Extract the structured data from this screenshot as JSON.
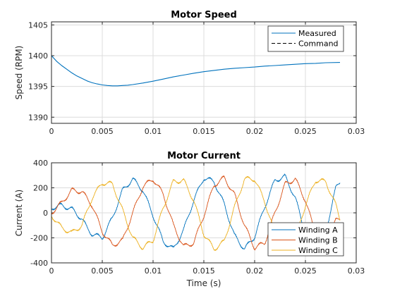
{
  "chart_data": [
    {
      "type": "line",
      "title": "Motor Speed",
      "xlabel": "",
      "ylabel": "Speed (RPM)",
      "xlim": [
        0,
        0.03
      ],
      "ylim": [
        1389,
        1405.5
      ],
      "xticks": [
        "0",
        "0.005",
        "0.01",
        "0.015",
        "0.02",
        "0.025",
        "0.03"
      ],
      "yticks": [
        "1390",
        "1395",
        "1400",
        "1405"
      ],
      "grid": true,
      "legend_position": "top-right",
      "series": [
        {
          "name": "Measured",
          "color": "#0072BD",
          "x": [
            0,
            0.0005,
            0.001,
            0.0015,
            0.002,
            0.0025,
            0.003,
            0.0035,
            0.004,
            0.0045,
            0.005,
            0.0055,
            0.006,
            0.0065,
            0.007,
            0.0075,
            0.008,
            0.009,
            0.01,
            0.011,
            0.012,
            0.013,
            0.014,
            0.015,
            0.016,
            0.017,
            0.018,
            0.019,
            0.02,
            0.021,
            0.022,
            0.023,
            0.024,
            0.025,
            0.026,
            0.027,
            0.0284
          ],
          "y": [
            1400,
            1399.1,
            1398.4,
            1397.8,
            1397.2,
            1396.7,
            1396.3,
            1395.9,
            1395.6,
            1395.4,
            1395.25,
            1395.15,
            1395.1,
            1395.1,
            1395.15,
            1395.2,
            1395.3,
            1395.55,
            1395.85,
            1396.2,
            1396.55,
            1396.85,
            1397.15,
            1397.4,
            1397.6,
            1397.8,
            1397.95,
            1398.05,
            1398.15,
            1398.3,
            1398.4,
            1398.5,
            1398.6,
            1398.7,
            1398.75,
            1398.85,
            1398.9
          ]
        },
        {
          "name": "Command",
          "color": "#000000",
          "dashed": true,
          "x": [],
          "y": []
        }
      ]
    },
    {
      "type": "line",
      "title": "Motor Current",
      "xlabel": "Time (s)",
      "ylabel": "Current (A)",
      "xlim": [
        0,
        0.03
      ],
      "ylim": [
        -400,
        400
      ],
      "xticks": [
        "0",
        "0.005",
        "0.01",
        "0.015",
        "0.02",
        "0.025",
        "0.03"
      ],
      "yticks": [
        "-400",
        "-200",
        "0",
        "200",
        "400"
      ],
      "grid": true,
      "legend_position": "bottom-right",
      "series": [
        {
          "name": "Winding A",
          "color": "#0072BD",
          "x": [
            0,
            0.001,
            0.002,
            0.003,
            0.0035,
            0.004,
            0.005,
            0.006,
            0.007,
            0.008,
            0.009,
            0.01,
            0.011,
            0.012,
            0.013,
            0.014,
            0.015,
            0.016,
            0.017,
            0.018,
            0.019,
            0.02,
            0.021,
            0.022,
            0.023,
            0.024,
            0.025,
            0.026,
            0.027,
            0.028,
            0.0284
          ],
          "y": [
            40,
            60,
            30,
            -50,
            -120,
            -170,
            -200,
            -40,
            180,
            270,
            180,
            -20,
            -230,
            -290,
            -140,
            100,
            280,
            250,
            70,
            -180,
            -290,
            -190,
            50,
            260,
            290,
            120,
            -170,
            -280,
            -150,
            200,
            250
          ]
        },
        {
          "name": "Winding B",
          "color": "#D95319",
          "x": [
            0,
            0.001,
            0.002,
            0.003,
            0.004,
            0.005,
            0.006,
            0.007,
            0.008,
            0.009,
            0.01,
            0.011,
            0.012,
            0.013,
            0.014,
            0.015,
            0.016,
            0.017,
            0.018,
            0.019,
            0.02,
            0.021,
            0.022,
            0.023,
            0.024,
            0.025,
            0.026,
            0.027,
            0.028,
            0.0284
          ],
          "y": [
            0,
            80,
            180,
            170,
            60,
            -150,
            -260,
            -220,
            0,
            210,
            270,
            150,
            -100,
            -270,
            -240,
            -20,
            220,
            280,
            150,
            -100,
            -280,
            -240,
            0,
            230,
            270,
            100,
            -170,
            -270,
            -60,
            -40
          ]
        },
        {
          "name": "Winding C",
          "color": "#EDB120",
          "x": [
            0,
            0.001,
            0.002,
            0.003,
            0.004,
            0.005,
            0.006,
            0.007,
            0.008,
            0.009,
            0.01,
            0.011,
            0.012,
            0.013,
            0.014,
            0.015,
            0.016,
            0.017,
            0.018,
            0.019,
            0.02,
            0.021,
            0.022,
            0.023,
            0.024,
            0.025,
            0.026,
            0.027,
            0.028,
            0.0284
          ],
          "y": [
            -20,
            -120,
            -160,
            -100,
            120,
            240,
            230,
            20,
            -200,
            -280,
            -220,
            40,
            250,
            260,
            100,
            -170,
            -290,
            -230,
            40,
            270,
            270,
            90,
            -170,
            -280,
            -200,
            60,
            260,
            250,
            60,
            -50
          ]
        }
      ]
    }
  ]
}
